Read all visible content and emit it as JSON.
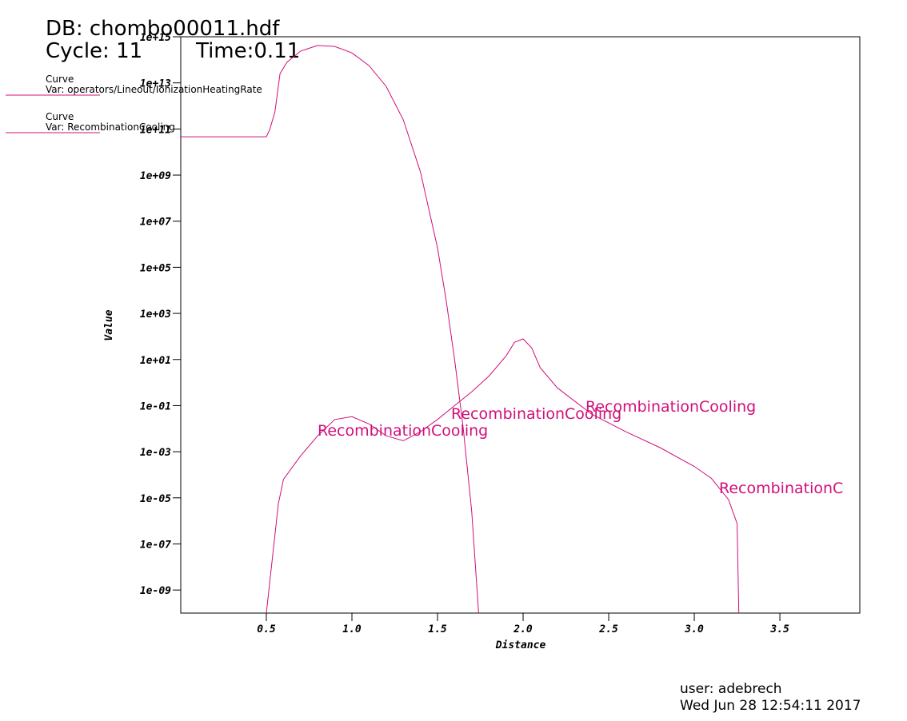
{
  "chart_data": {
    "type": "line",
    "title": "DB: chombo00011.hdf",
    "cycle": "Cycle: 11",
    "time": "Time:0.11",
    "x_label": "Distance",
    "y_label": "Value",
    "log_y": true,
    "xlim": [
      0,
      3.967
    ],
    "ylim": [
      1e-10,
      1000000000000000.0
    ],
    "xticks": [
      0.5,
      {
        "value": 1,
        "label": "1.0"
      },
      1.5,
      {
        "value": 2,
        "label": "2.0"
      },
      2.5,
      {
        "value": 3,
        "label": "3.0"
      },
      3.5
    ],
    "yticks": [
      {
        "value": 1e-09,
        "label": "1e-09"
      },
      {
        "value": 1e-07,
        "label": "1e-07"
      },
      {
        "value": 1e-05,
        "label": "1e-05"
      },
      {
        "value": 0.001,
        "label": "1e-03"
      },
      {
        "value": 0.1,
        "label": "1e-01"
      },
      {
        "value": 10,
        "label": "1e+01"
      },
      {
        "value": 1000,
        "label": "1e+03"
      },
      {
        "value": 100000,
        "label": "1e+05"
      },
      {
        "value": 10000000,
        "label": "1e+07"
      },
      {
        "value": 1000000000,
        "label": "1e+09"
      },
      {
        "value": 100000000000,
        "label": "1e+11"
      },
      {
        "value": 10000000000000,
        "label": "1e+13"
      },
      {
        "value": 1000000000000000,
        "label": "1e+15"
      }
    ],
    "series": [
      {
        "legend_label": "Curve",
        "name": "Var: operators/Lineout/IonizationHeatingRate",
        "color": "#d0107a",
        "x": [
          0,
          0.5,
          0.52,
          0.55,
          0.58,
          0.62,
          0.7,
          0.8,
          0.9,
          1.0,
          1.1,
          1.2,
          1.3,
          1.4,
          1.5,
          1.55,
          1.6,
          1.65,
          1.7,
          1.74
        ],
        "values": [
          46000000000.0,
          46000000000.0,
          95000000000.0,
          550000000000.0,
          25000000000000.0,
          78000000000000.0,
          240000000000000.0,
          420000000000000.0,
          380000000000000.0,
          200000000000000.0,
          56000000000000.0,
          7000000000000.0,
          250000000000.0,
          1400000000.0,
          700000.0,
          3900,
          9.8,
          0.011,
          2.5e-06,
          1e-10
        ]
      },
      {
        "legend_label": "Curve",
        "name": "Var: RecombinationCooling",
        "color": "#d0107a",
        "x": [
          0.5,
          0.57,
          0.6,
          0.7,
          0.8,
          0.9,
          1.0,
          1.1,
          1.2,
          1.3,
          1.4,
          1.5,
          1.6,
          1.7,
          1.8,
          1.9,
          1.95,
          2.0,
          2.05,
          2.1,
          2.2,
          2.4,
          2.6,
          2.8,
          3.0,
          3.1,
          3.2,
          3.25,
          3.26
        ],
        "values": [
          1e-10,
          5.5e-06,
          6.3e-05,
          0.00066,
          0.0049,
          0.025,
          0.033,
          0.016,
          0.0049,
          0.003,
          0.0074,
          0.025,
          0.1,
          0.4,
          1.9,
          14,
          56,
          78,
          32,
          4.4,
          0.59,
          0.043,
          0.0074,
          0.0015,
          0.00023,
          7e-05,
          8.3e-06,
          7.6e-07,
          1e-10
        ]
      }
    ],
    "annotations": [
      "RecombinationCooling",
      "RecombinationCooling",
      "RecombinationCooling",
      "RecombinationC"
    ],
    "user": "user: adebrech",
    "date": "Wed Jun 28 12:54:11 2017"
  }
}
